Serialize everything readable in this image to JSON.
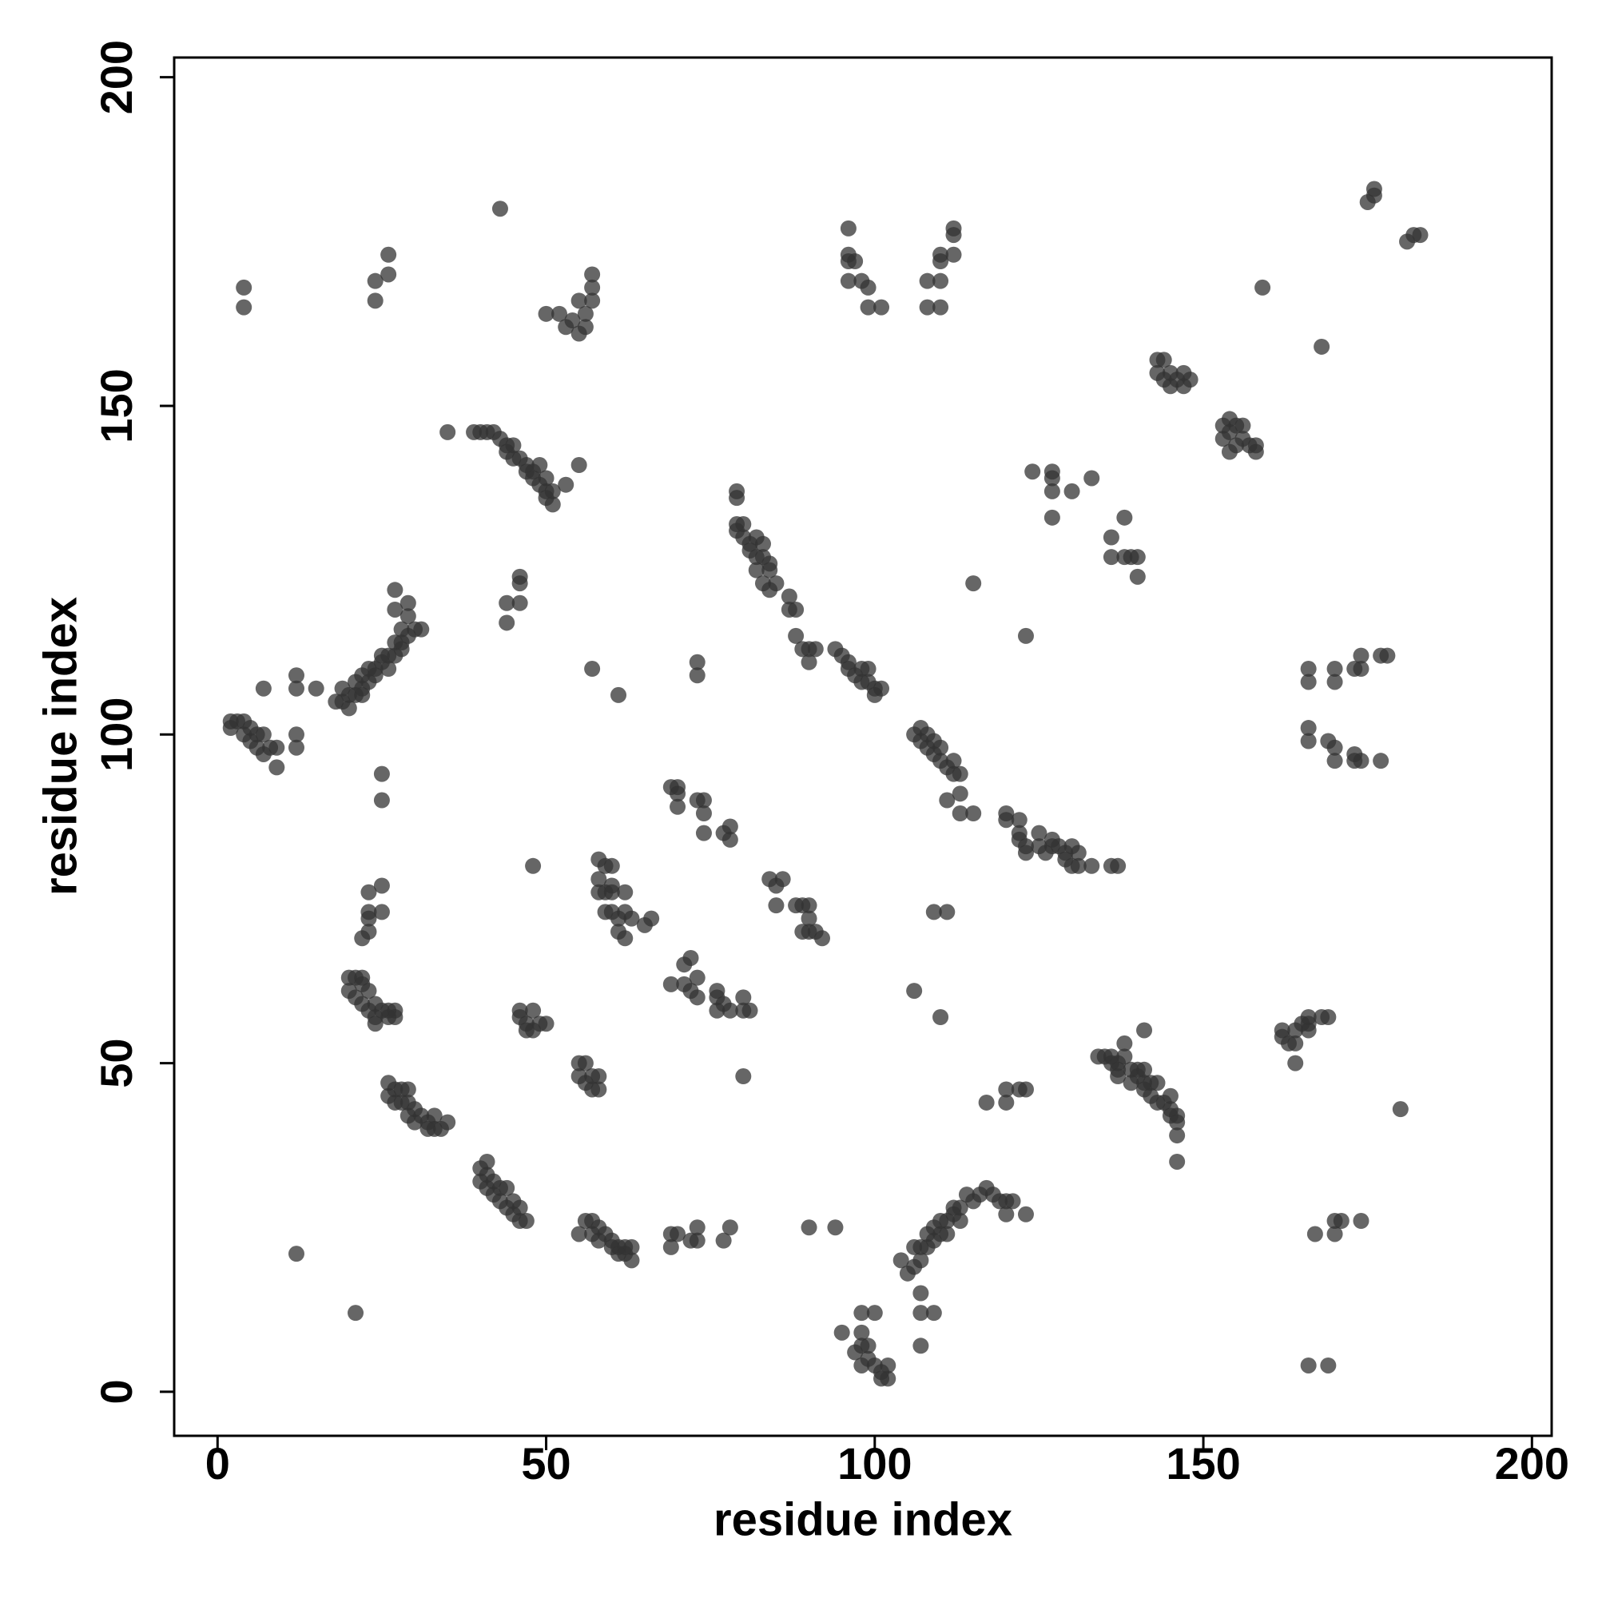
{
  "chart_data": {
    "type": "scatter",
    "x_label": "residue index",
    "y_label": "residue index",
    "color": "#333333",
    "alpha": 0.75,
    "xlim": [
      -6.6,
      203
    ],
    "ylim": [
      -6.7,
      203
    ],
    "xticks": [
      0,
      50,
      100,
      150,
      200
    ],
    "yticks": [
      0,
      50,
      100,
      150,
      200
    ],
    "x": [
      4,
      4,
      24,
      24,
      26,
      26,
      43,
      50,
      52,
      53,
      54,
      55,
      56,
      55,
      57,
      56,
      57,
      57,
      96,
      96,
      96,
      97,
      96,
      98,
      99,
      99,
      101,
      108,
      108,
      110,
      110,
      110,
      110,
      112,
      112,
      112,
      176,
      176,
      175,
      181,
      182,
      183,
      159,
      168,
      143,
      144,
      143,
      144,
      145,
      145,
      146,
      147,
      147,
      148,
      153,
      154,
      155,
      156,
      153,
      154,
      155,
      156,
      157,
      158,
      158,
      154,
      124,
      127,
      127,
      127,
      127,
      130,
      133,
      136,
      136,
      138,
      138,
      139,
      140,
      140,
      115,
      123,
      35,
      39,
      40,
      41,
      42,
      43,
      44,
      45,
      44,
      45,
      46,
      47,
      47,
      48,
      49,
      48,
      49,
      50,
      50,
      51,
      51,
      50,
      53,
      55,
      44,
      46,
      44,
      46,
      46,
      57,
      61,
      73,
      73,
      79,
      79,
      79,
      80,
      79,
      80,
      81,
      82,
      83,
      81,
      82,
      83,
      84,
      84,
      82,
      83,
      84,
      85,
      87,
      87,
      88,
      88,
      89,
      90,
      90,
      91,
      94,
      95,
      96,
      96,
      97,
      98,
      99,
      98,
      99,
      100,
      100,
      101,
      106,
      107,
      108,
      107,
      108,
      109,
      109,
      110,
      110,
      111,
      112,
      112,
      113,
      111,
      113,
      113,
      115,
      120,
      120,
      122,
      122,
      122,
      123,
      123,
      125,
      125,
      126,
      127,
      127,
      128,
      129,
      129,
      130,
      130,
      131,
      131,
      133,
      136,
      137,
      2,
      2,
      3,
      4,
      4,
      5,
      5,
      6,
      6,
      7,
      7,
      8,
      9,
      9,
      7,
      12,
      12,
      12,
      12,
      15,
      18,
      19,
      19,
      20,
      20,
      21,
      21,
      22,
      22,
      22,
      23,
      23,
      24,
      24,
      25,
      25,
      26,
      26,
      27,
      27,
      28,
      28,
      28,
      29,
      29,
      30,
      31,
      27,
      27,
      29,
      25,
      25,
      25,
      23,
      23,
      23,
      23,
      22,
      25,
      20,
      21,
      22,
      20,
      21,
      22,
      23,
      22,
      23,
      24,
      24,
      24,
      25,
      26,
      26,
      27,
      27,
      21,
      12,
      26,
      27,
      28,
      29,
      26,
      27,
      28,
      29,
      30,
      29,
      30,
      31,
      32,
      32,
      33,
      33,
      34,
      35,
      40,
      41,
      41,
      40,
      41,
      42,
      42,
      43,
      43,
      44,
      44,
      45,
      45,
      46,
      46,
      47,
      46,
      46,
      47,
      48,
      49,
      48,
      50,
      47,
      48,
      55,
      55,
      56,
      56,
      57,
      58,
      57,
      58,
      55,
      56,
      57,
      57,
      58,
      58,
      59,
      60,
      60,
      61,
      61,
      62,
      62,
      63,
      63,
      69,
      69,
      70,
      73,
      73,
      72,
      77,
      78,
      58,
      58,
      58,
      59,
      60,
      59,
      60,
      60,
      59,
      60,
      61,
      61,
      62,
      62,
      62,
      63,
      65,
      66,
      69,
      70,
      70,
      70,
      73,
      74,
      74,
      74,
      77,
      78,
      78,
      69,
      71,
      72,
      71,
      72,
      73,
      73,
      76,
      76,
      77,
      76,
      78,
      80,
      80,
      81,
      80,
      84,
      85,
      86,
      85,
      88,
      89,
      90,
      90,
      89,
      90,
      91,
      92,
      90,
      94,
      95,
      97,
      98,
      98,
      99,
      99,
      98,
      100,
      101,
      101,
      102,
      102,
      98,
      100,
      104,
      105,
      106,
      106,
      107,
      107,
      108,
      108,
      109,
      109,
      110,
      110,
      111,
      111,
      112,
      112,
      113,
      113,
      114,
      115,
      116,
      117,
      118,
      119,
      120,
      120,
      121,
      123,
      107,
      107,
      109,
      107,
      106,
      110,
      109,
      111,
      117,
      120,
      120,
      122,
      123,
      134,
      135,
      136,
      136,
      137,
      137,
      137,
      138,
      138,
      139,
      140,
      139,
      140,
      141,
      141,
      141,
      141,
      142,
      142,
      143,
      143,
      144,
      145,
      145,
      145,
      146,
      146,
      146,
      146,
      162,
      162,
      163,
      164,
      164,
      164,
      165,
      166,
      166,
      166,
      168,
      169,
      166,
      166,
      166,
      166,
      169,
      170,
      170,
      170,
      170,
      173,
      173,
      174,
      174,
      173,
      174,
      177,
      178,
      177,
      167,
      170,
      170,
      171,
      174,
      166,
      169,
      180
    ],
    "y": [
      168,
      165,
      169,
      166,
      170,
      173,
      180,
      164,
      164,
      162,
      163,
      161,
      162,
      166,
      166,
      164,
      168,
      170,
      177,
      173,
      172,
      172,
      169,
      169,
      168,
      165,
      165,
      169,
      165,
      165,
      169,
      172,
      173,
      173,
      176,
      177,
      183,
      182,
      181,
      175,
      176,
      176,
      168,
      159,
      157,
      157,
      155,
      154,
      155,
      153,
      154,
      155,
      153,
      154,
      147,
      148,
      147,
      147,
      145,
      146,
      144,
      145,
      144,
      144,
      143,
      143,
      140,
      140,
      139,
      137,
      133,
      137,
      139,
      130,
      127,
      133,
      127,
      127,
      127,
      124,
      123,
      115,
      146,
      146,
      146,
      146,
      146,
      145,
      144,
      144,
      143,
      142,
      142,
      141,
      140,
      140,
      141,
      139,
      138,
      137,
      136,
      137,
      135,
      139,
      138,
      141,
      120,
      120,
      117,
      124,
      123,
      110,
      106,
      111,
      109,
      136,
      137,
      132,
      132,
      131,
      130,
      129,
      130,
      129,
      128,
      127,
      127,
      126,
      125,
      125,
      123,
      122,
      123,
      121,
      119,
      119,
      115,
      113,
      113,
      111,
      113,
      113,
      112,
      111,
      110,
      109,
      110,
      110,
      108,
      108,
      107,
      106,
      107,
      100,
      101,
      100,
      99,
      98,
      99,
      97,
      96,
      98,
      95,
      96,
      94,
      94,
      90,
      91,
      88,
      88,
      88,
      87,
      87,
      85,
      84,
      83,
      82,
      85,
      83,
      82,
      84,
      83,
      83,
      82,
      81,
      83,
      80,
      80,
      82,
      80,
      80,
      80,
      101,
      102,
      102,
      102,
      100,
      101,
      99,
      98,
      100,
      100,
      97,
      98,
      95,
      98,
      107,
      109,
      107,
      100,
      98,
      107,
      105,
      105,
      107,
      106,
      104,
      106,
      108,
      107,
      106,
      109,
      108,
      110,
      110,
      109,
      112,
      111,
      110,
      112,
      112,
      114,
      114,
      113,
      116,
      118,
      120,
      116,
      116,
      122,
      119,
      115,
      94,
      90,
      77,
      76,
      73,
      72,
      70,
      69,
      73,
      63,
      63,
      63,
      61,
      60,
      62,
      61,
      59,
      58,
      59,
      57,
      56,
      58,
      58,
      57,
      58,
      57,
      12,
      21,
      47,
      46,
      46,
      46,
      45,
      44,
      44,
      44,
      43,
      42,
      41,
      42,
      41,
      40,
      42,
      40,
      40,
      41,
      34,
      35,
      33,
      32,
      31,
      32,
      30,
      31,
      29,
      31,
      28,
      29,
      27,
      28,
      26,
      26,
      58,
      57,
      56,
      58,
      56,
      55,
      56,
      55,
      80,
      50,
      48,
      50,
      47,
      48,
      48,
      46,
      46,
      24,
      26,
      26,
      24,
      25,
      23,
      24,
      22,
      23,
      21,
      22,
      21,
      22,
      20,
      22,
      22,
      24,
      24,
      25,
      23,
      23,
      23,
      25,
      81,
      78,
      76,
      80,
      80,
      76,
      77,
      76,
      73,
      73,
      72,
      70,
      76,
      73,
      69,
      72,
      71,
      72,
      92,
      92,
      89,
      91,
      90,
      90,
      88,
      85,
      85,
      86,
      84,
      62,
      65,
      66,
      62,
      61,
      60,
      63,
      61,
      60,
      59,
      58,
      58,
      60,
      58,
      58,
      48,
      78,
      77,
      78,
      74,
      74,
      74,
      74,
      72,
      70,
      70,
      70,
      69,
      25,
      25,
      9,
      6,
      9,
      7,
      7,
      5,
      4,
      4,
      3,
      2,
      2,
      4,
      12,
      12,
      20,
      18,
      19,
      22,
      22,
      20,
      22,
      24,
      23,
      25,
      24,
      26,
      24,
      26,
      27,
      28,
      26,
      28,
      30,
      29,
      30,
      31,
      30,
      29,
      29,
      27,
      29,
      27,
      15,
      12,
      12,
      7,
      61,
      57,
      73,
      73,
      44,
      44,
      46,
      46,
      46,
      51,
      51,
      51,
      50,
      50,
      49,
      48,
      53,
      51,
      49,
      48,
      47,
      49,
      47,
      46,
      49,
      55,
      45,
      47,
      47,
      44,
      44,
      45,
      42,
      43,
      42,
      41,
      39,
      35,
      55,
      54,
      53,
      55,
      53,
      50,
      56,
      56,
      55,
      57,
      57,
      57,
      110,
      108,
      101,
      99,
      99,
      98,
      96,
      108,
      110,
      97,
      96,
      96,
      112,
      110,
      110,
      112,
      112,
      96,
      24,
      24,
      26,
      26,
      26,
      4,
      4,
      43
    ]
  }
}
